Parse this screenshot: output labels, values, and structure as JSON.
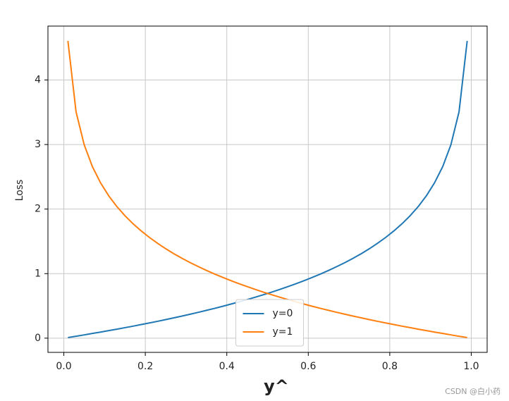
{
  "chart_data": {
    "type": "line",
    "ylabel": "Loss",
    "xlabel": "y^",
    "watermark": "CSDN @白小药",
    "x": [
      0.01,
      0.03,
      0.05,
      0.07,
      0.09,
      0.11,
      0.13,
      0.15,
      0.17,
      0.19,
      0.21,
      0.23,
      0.25,
      0.27,
      0.29,
      0.31,
      0.33,
      0.35,
      0.37,
      0.39,
      0.41,
      0.43,
      0.45,
      0.47,
      0.49,
      0.51,
      0.53,
      0.55,
      0.57,
      0.59,
      0.61,
      0.63,
      0.65,
      0.67,
      0.69,
      0.71,
      0.73,
      0.75,
      0.77,
      0.79,
      0.81,
      0.83,
      0.85,
      0.87,
      0.89,
      0.91,
      0.93,
      0.95,
      0.97,
      0.99
    ],
    "series": [
      {
        "name": "y=0",
        "color": "#1f77b4",
        "values": [
          0.01,
          0.03,
          0.051,
          0.073,
          0.094,
          0.117,
          0.139,
          0.163,
          0.186,
          0.211,
          0.236,
          0.261,
          0.288,
          0.315,
          0.342,
          0.371,
          0.4,
          0.431,
          0.462,
          0.494,
          0.528,
          0.562,
          0.598,
          0.635,
          0.673,
          0.713,
          0.755,
          0.799,
          0.844,
          0.892,
          0.942,
          0.994,
          1.05,
          1.109,
          1.171,
          1.238,
          1.309,
          1.386,
          1.47,
          1.561,
          1.661,
          1.772,
          1.897,
          2.04,
          2.207,
          2.408,
          2.659,
          2.996,
          3.507,
          4.605
        ]
      },
      {
        "name": "y=1",
        "color": "#ff7f0e",
        "values": [
          4.605,
          3.507,
          2.996,
          2.659,
          2.408,
          2.207,
          2.04,
          1.897,
          1.772,
          1.661,
          1.561,
          1.47,
          1.386,
          1.309,
          1.238,
          1.171,
          1.109,
          1.05,
          0.994,
          0.942,
          0.892,
          0.844,
          0.799,
          0.755,
          0.713,
          0.673,
          0.635,
          0.598,
          0.562,
          0.528,
          0.494,
          0.462,
          0.431,
          0.4,
          0.371,
          0.342,
          0.315,
          0.288,
          0.261,
          0.236,
          0.211,
          0.186,
          0.163,
          0.139,
          0.117,
          0.094,
          0.073,
          0.051,
          0.03,
          0.01
        ]
      }
    ],
    "xlim": [
      -0.039,
      1.039
    ],
    "ylim": [
      -0.22,
      4.835
    ],
    "xticks": [
      {
        "value": 0,
        "label": "0.0"
      },
      {
        "value": 0.2,
        "label": "0.2"
      },
      {
        "value": 0.4,
        "label": "0.4"
      },
      {
        "value": 0.6,
        "label": "0.6"
      },
      {
        "value": 0.8,
        "label": "0.8"
      },
      {
        "value": 1,
        "label": "1.0"
      }
    ],
    "yticks": [
      0,
      1,
      2,
      3,
      4
    ],
    "grid": true,
    "legend": "lower center"
  }
}
